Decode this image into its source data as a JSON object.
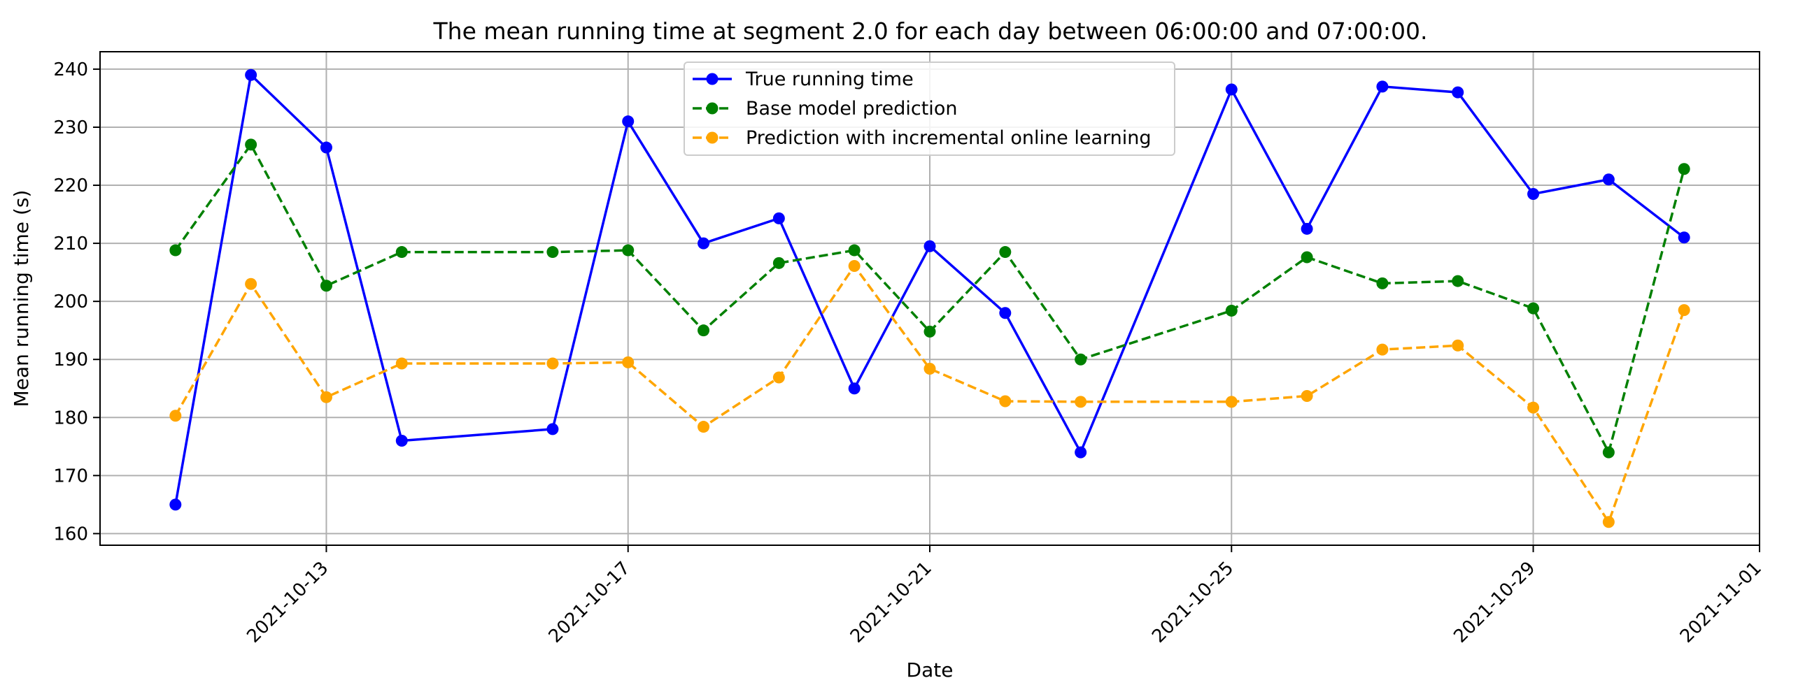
{
  "chart_data": {
    "type": "line",
    "title": "The mean running time at segment 2.0 for each day between 06:00:00 and 07:00:00.",
    "xlabel": "Date",
    "ylabel": "Mean running time (s)",
    "x_tick_labels": [
      "2021-10-13",
      "2021-10-17",
      "2021-10-21",
      "2021-10-25",
      "2021-10-29",
      "2021-11-01"
    ],
    "y_ticks": [
      160,
      170,
      180,
      190,
      200,
      210,
      220,
      230,
      240
    ],
    "ylim": [
      158,
      243
    ],
    "xlim": [
      "2021-10-10",
      "2021-11-01"
    ],
    "grid": true,
    "legend_position": "top-center",
    "x": [
      "2021-10-11",
      "2021-10-12",
      "2021-10-13",
      "2021-10-14",
      "2021-10-16",
      "2021-10-17",
      "2021-10-18",
      "2021-10-19",
      "2021-10-20",
      "2021-10-21",
      "2021-10-22",
      "2021-10-23",
      "2021-10-25",
      "2021-10-26",
      "2021-10-27",
      "2021-10-28",
      "2021-10-29",
      "2021-10-30",
      "2021-10-31"
    ],
    "series": [
      {
        "name": "True running time",
        "color": "#0000ff",
        "line_style": "solid",
        "marker": "circle",
        "values": [
          165,
          239,
          226.5,
          176,
          178,
          231,
          210,
          214.3,
          185,
          209.5,
          198,
          174,
          236.5,
          212.5,
          237,
          236,
          218.5,
          221,
          211
        ]
      },
      {
        "name": "Base model prediction",
        "color": "#008000",
        "line_style": "dashed",
        "marker": "circle",
        "values": [
          208.8,
          227,
          202.7,
          208.5,
          208.5,
          208.8,
          195,
          206.6,
          208.8,
          194.8,
          208.5,
          190,
          198.4,
          207.6,
          203.1,
          203.5,
          198.8,
          174,
          222.8
        ]
      },
      {
        "name": "Prediction with incremental online learning",
        "color": "#ffa500",
        "line_style": "dashed",
        "marker": "circle",
        "values": [
          180.3,
          203,
          183.5,
          189.3,
          189.3,
          189.5,
          178.4,
          186.9,
          206.1,
          188.4,
          182.8,
          182.7,
          182.7,
          183.7,
          191.7,
          192.4,
          181.7,
          162,
          198.5
        ]
      }
    ]
  }
}
